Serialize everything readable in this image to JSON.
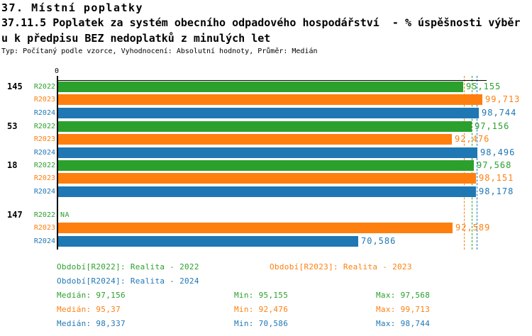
{
  "header": {
    "section_title": "37. Místní poplatky",
    "indicator_title_line1": "37.11.5 Poplatek za systém obecního odpadového hospodářství  - % úspěšnosti výběr",
    "indicator_title_line2": "u k předpisu BEZ nedoplatků z minulých let",
    "meta": "Typ: Počítaný podle vzorce, Vyhodnocení: Absolutní hodnoty, Průměr: Medián"
  },
  "colors": {
    "r2022": "#2ca02c",
    "r2023": "#ff7f0e",
    "r2024": "#1f77b4",
    "axis": "#000000",
    "background": "#ffffff"
  },
  "axis": {
    "zero_label": "0"
  },
  "chart_data": {
    "type": "bar",
    "orientation": "horizontal",
    "value_unit": "%",
    "xlim": [
      0,
      100
    ],
    "grid": "off",
    "series_names": [
      "R2022",
      "R2023",
      "R2024"
    ],
    "groups": [
      {
        "label": "145",
        "bars": [
          {
            "series": "R2022",
            "value": 95.155,
            "display": "95,155"
          },
          {
            "series": "R2023",
            "value": 99.713,
            "display": "99,713"
          },
          {
            "series": "R2024",
            "value": 98.744,
            "display": "98,744"
          }
        ]
      },
      {
        "label": "53",
        "bars": [
          {
            "series": "R2022",
            "value": 97.156,
            "display": "97,156"
          },
          {
            "series": "R2023",
            "value": 92.476,
            "display": "92,476"
          },
          {
            "series": "R2024",
            "value": 98.496,
            "display": "98,496"
          }
        ]
      },
      {
        "label": "18",
        "bars": [
          {
            "series": "R2022",
            "value": 97.568,
            "display": "97,568"
          },
          {
            "series": "R2023",
            "value": 98.151,
            "display": "98,151"
          },
          {
            "series": "R2024",
            "value": 98.178,
            "display": "98,178"
          }
        ]
      },
      {
        "label": "147",
        "bars": [
          {
            "series": "R2022",
            "value": null,
            "display": "NA"
          },
          {
            "series": "R2023",
            "value": 92.589,
            "display": "92,589"
          },
          {
            "series": "R2024",
            "value": 70.586,
            "display": "70,586"
          }
        ]
      }
    ],
    "median_lines": [
      {
        "series": "R2022",
        "value": 97.156
      },
      {
        "series": "R2023",
        "value": 95.37
      },
      {
        "series": "R2024",
        "value": 98.337
      }
    ]
  },
  "legend": [
    {
      "series": "R2022",
      "text": "Období[R2022]: Realita - 2022"
    },
    {
      "series": "R2023",
      "text": "Období[R2023]: Realita - 2023"
    },
    {
      "series": "R2024",
      "text": "Období[R2024]: Realita - 2024"
    }
  ],
  "stats": [
    {
      "series": "R2022",
      "median": "Medián: 97,156",
      "min": "Min: 95,155",
      "max": "Max: 97,568"
    },
    {
      "series": "R2023",
      "median": "Medián: 95,37",
      "min": "Min: 92,476",
      "max": "Max: 99,713"
    },
    {
      "series": "R2024",
      "median": "Medián: 98,337",
      "min": "Min: 70,586",
      "max": "Max: 98,744"
    }
  ]
}
